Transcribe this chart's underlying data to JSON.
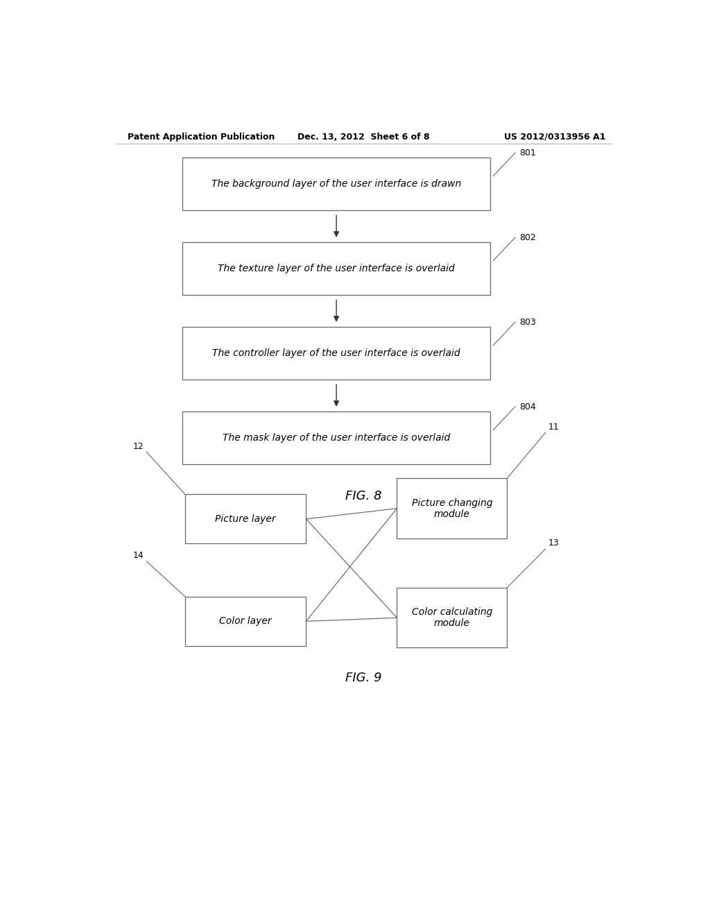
{
  "background_color": "#ffffff",
  "header_left": "Patent Application Publication",
  "header_center": "Dec. 13, 2012  Sheet 6 of 8",
  "header_right": "US 2012/0313956 A1",
  "fig8_title": "FIG. 8",
  "fig9_title": "FIG. 9",
  "fig8_boxes": [
    {
      "label": "The background layer of the user interface is drawn",
      "ref": "801"
    },
    {
      "label": "The texture layer of the user interface is overlaid",
      "ref": "802"
    },
    {
      "label": "The controller layer of the user interface is overlaid",
      "ref": "803"
    },
    {
      "label": "The mask layer of the user interface is overlaid",
      "ref": "804"
    }
  ],
  "text_color": "#000000",
  "box_edge_color": "#666666",
  "arrow_color": "#333333",
  "font_size_header": 9,
  "font_size_box": 10,
  "font_size_ref": 9,
  "font_size_fig_label": 13
}
